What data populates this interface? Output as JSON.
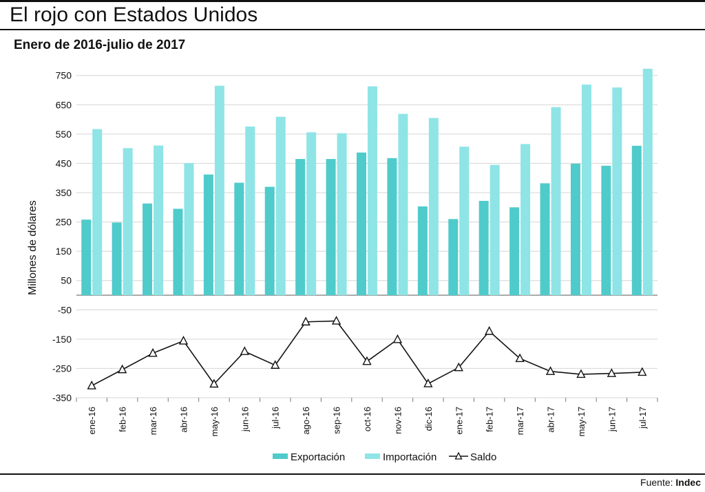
{
  "header": {
    "title": "El rojo con Estados Unidos",
    "subtitle": "Enero de 2016-julio de 2017"
  },
  "footer": {
    "source_label": "Fuente:",
    "source_name": "Indec"
  },
  "chart_data": {
    "type": "bar",
    "title": "",
    "ylabel": "Millones de dólares",
    "xlabel": "",
    "ylim": [
      -350,
      790
    ],
    "yticks": [
      750,
      650,
      550,
      450,
      350,
      250,
      150,
      50,
      -50,
      -150,
      -250,
      -350
    ],
    "grid": true,
    "legend_position": "bottom",
    "categories": [
      "ene-16",
      "feb-16",
      "mar-16",
      "abr-16",
      "may-16",
      "jun-16",
      "jul-16",
      "ago-16",
      "sep-16",
      "oct-16",
      "nov-16",
      "dic-16",
      "ene-17",
      "feb-17",
      "mar-17",
      "abr-17",
      "may-17",
      "jun-17",
      "jul-17"
    ],
    "series": [
      {
        "name": "Exportación",
        "type": "bar",
        "color": "#4fcbcb",
        "values": [
          258,
          248,
          313,
          295,
          412,
          384,
          370,
          465,
          465,
          487,
          468,
          303,
          260,
          322,
          300,
          382,
          449,
          442,
          510
        ]
      },
      {
        "name": "Importación",
        "type": "bar",
        "color": "#8fe4e6",
        "values": [
          567,
          502,
          511,
          451,
          715,
          576,
          609,
          556,
          553,
          713,
          619,
          605,
          507,
          445,
          516,
          642,
          719,
          709,
          773
        ]
      },
      {
        "name": "Saldo",
        "type": "line",
        "color": "#111111",
        "marker": "triangle-open",
        "values": [
          -309,
          -254,
          -198,
          -156,
          -303,
          -192,
          -239,
          -91,
          -88,
          -226,
          -151,
          -302,
          -247,
          -123,
          -216,
          -260,
          -270,
          -267,
          -263
        ]
      }
    ]
  }
}
